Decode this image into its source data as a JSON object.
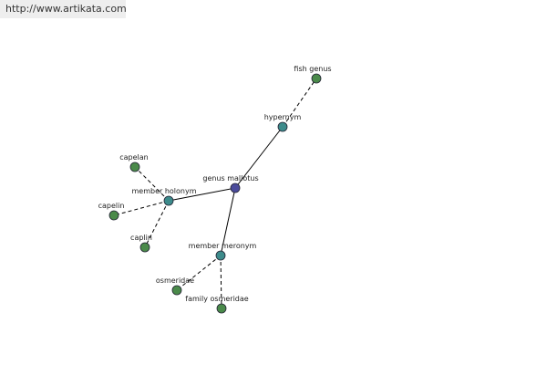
{
  "header": {
    "url": "http://www.artikata.com"
  },
  "nodes": [
    {
      "label": "genus mallotus"
    },
    {
      "label": "hypernym"
    },
    {
      "label": "fish genus"
    },
    {
      "label": "member holonym"
    },
    {
      "label": "capelan"
    },
    {
      "label": "capelin"
    },
    {
      "label": "caplin"
    },
    {
      "label": "member meronym"
    },
    {
      "label": "osmeridae"
    },
    {
      "label": "family osmeridae"
    }
  ]
}
